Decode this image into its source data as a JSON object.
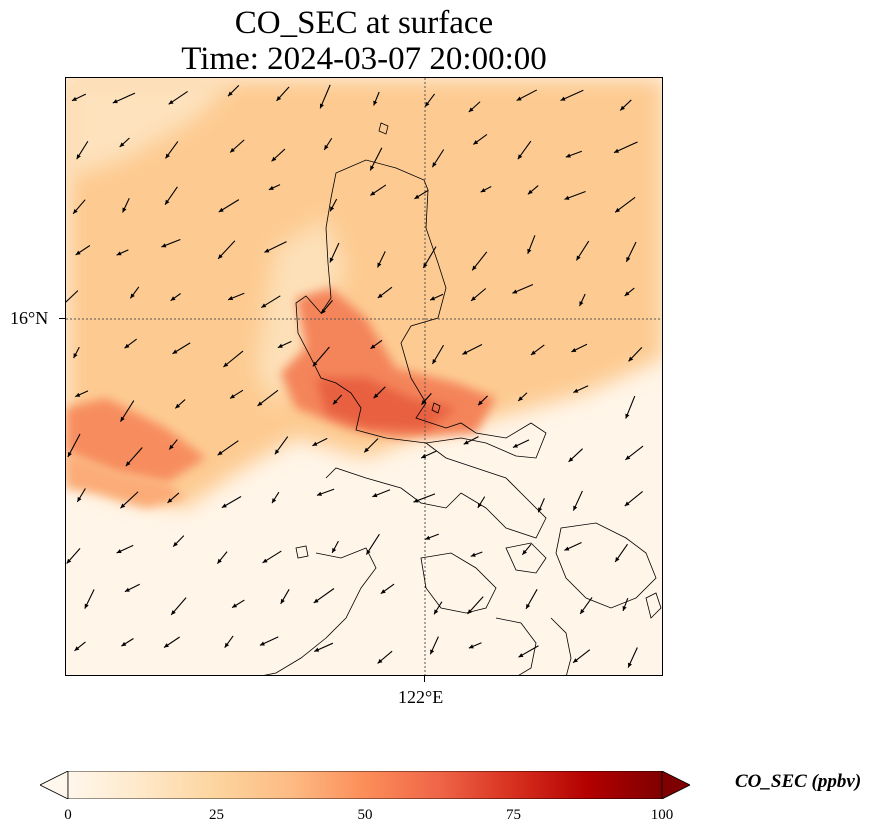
{
  "title": {
    "line1": "CO_SEC at surface",
    "line2": "Time: 2024-03-07 20:00:00"
  },
  "map": {
    "lat_label": "16°N",
    "lon_label": "122°E",
    "gridline_style": "dotted",
    "field_colormap": "OrRd",
    "field_variable": "CO_SEC",
    "wind_vectors_direction": "mostly toward southwest"
  },
  "colorbar": {
    "label": "CO_SEC (ppbv)",
    "min": 0,
    "max": 100,
    "ticks": [
      "0",
      "25",
      "50",
      "75",
      "100"
    ],
    "extend": "both",
    "colors": [
      "#fff7ec",
      "#fee8c8",
      "#fdd49e",
      "#fdbb84",
      "#fc8d59",
      "#ef6548",
      "#d7301f",
      "#b30000",
      "#7f0000"
    ]
  }
}
